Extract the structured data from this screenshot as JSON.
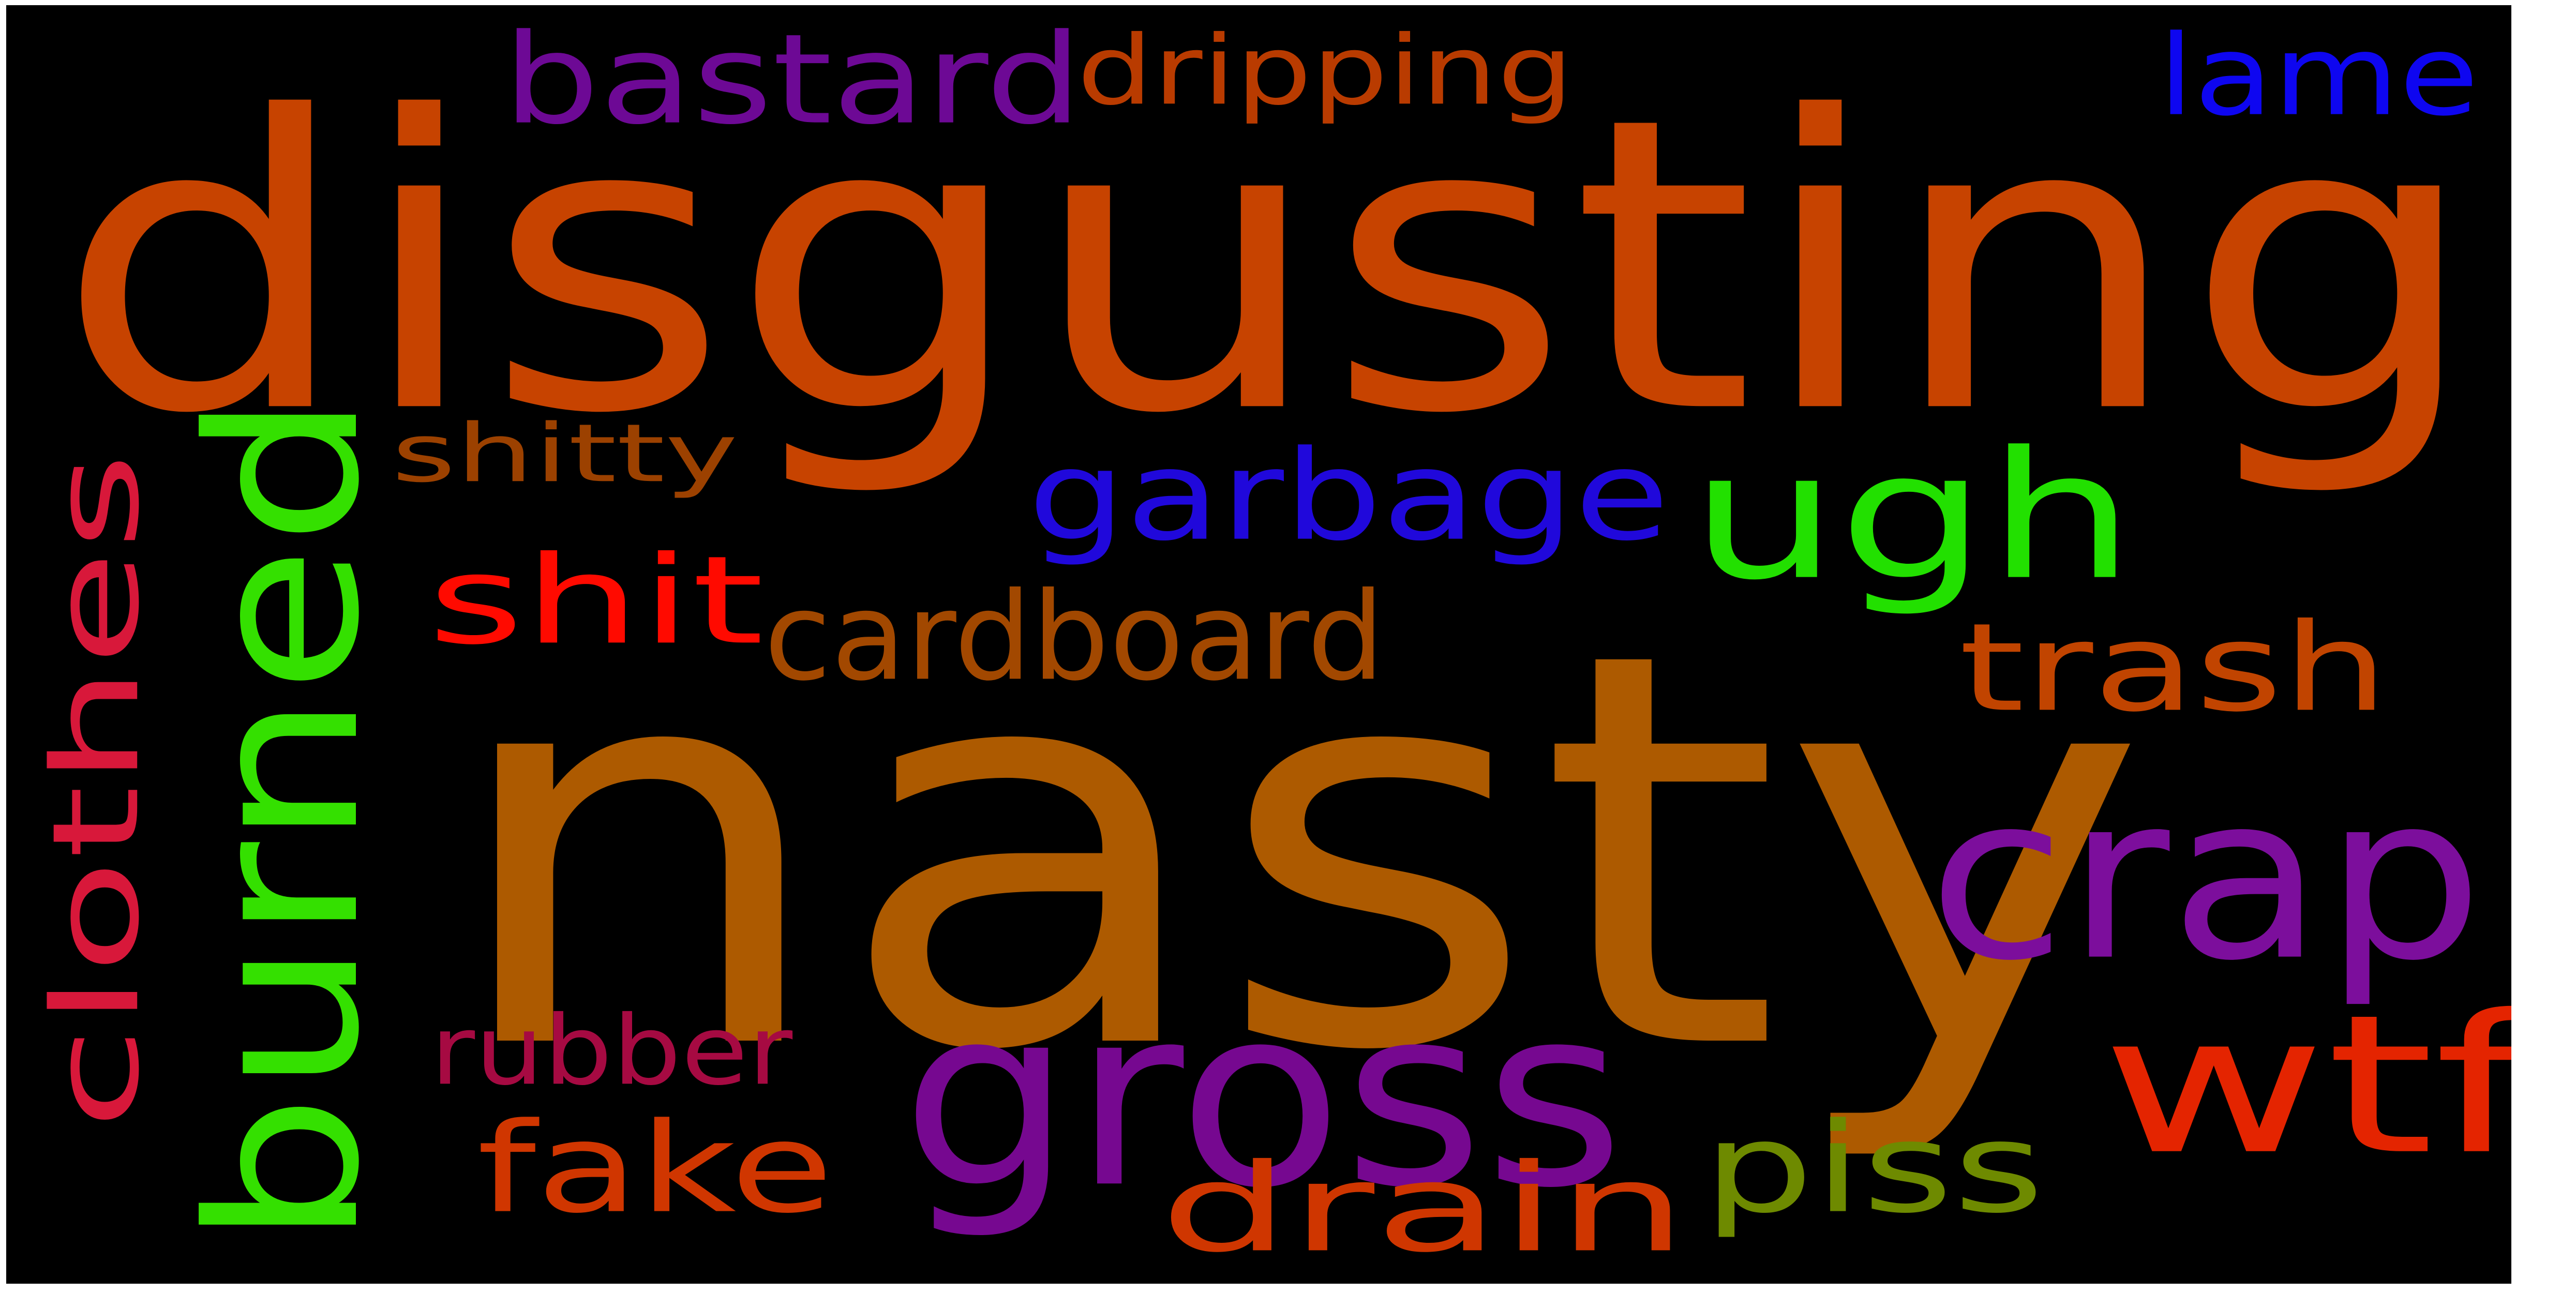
{
  "words": [
    {
      "text": "disgusting",
      "color": "#c74300"
    },
    {
      "text": "nasty",
      "color": "#ad5a00"
    },
    {
      "text": "ugh",
      "color": "#22e000"
    },
    {
      "text": "garbage",
      "color": "#2008db"
    },
    {
      "text": "burned",
      "color": "#34e000"
    },
    {
      "text": "clothes",
      "color": "#d8183a"
    },
    {
      "text": "shit",
      "color": "#ff0a00"
    },
    {
      "text": "cardboard",
      "color": "#a24800"
    },
    {
      "text": "trash",
      "color": "#c14400"
    },
    {
      "text": "crap",
      "color": "#7c0e9c"
    },
    {
      "text": "gross",
      "color": "#760890"
    },
    {
      "text": "wtf",
      "color": "#e42400"
    },
    {
      "text": "fake",
      "color": "#d03600"
    },
    {
      "text": "drain",
      "color": "#cf3600"
    },
    {
      "text": "piss",
      "color": "#6e8a00"
    },
    {
      "text": "rubber",
      "color": "#a60a42"
    },
    {
      "text": "shitty",
      "color": "#9c4100"
    },
    {
      "text": "bastard",
      "color": "#6d0995"
    },
    {
      "text": "dripping",
      "color": "#b93b00"
    },
    {
      "text": "lame",
      "color": "#0e06f0"
    }
  ]
}
